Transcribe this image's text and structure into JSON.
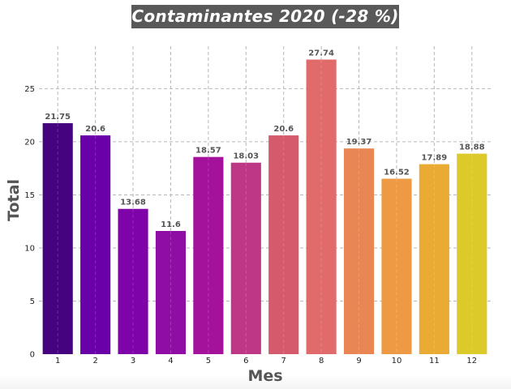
{
  "chart_data": {
    "type": "bar",
    "title": "Contaminantes 2020 (-28 %)",
    "xlabel": "Mes",
    "ylabel": "Total",
    "categories": [
      "1",
      "2",
      "3",
      "4",
      "5",
      "6",
      "7",
      "8",
      "9",
      "10",
      "11",
      "12"
    ],
    "values": [
      21.75,
      20.6,
      13.68,
      11.6,
      18.57,
      18.03,
      20.6,
      27.74,
      19.37,
      16.52,
      17.89,
      18.88
    ],
    "value_labels": [
      "21.75",
      "20.6",
      "13.68",
      "11.6",
      "18.57",
      "18.03",
      "20.6",
      "27.74",
      "19.37",
      "16.52",
      "17.89",
      "18.88"
    ],
    "ylim": [
      0,
      29
    ],
    "yticks": [
      0,
      5,
      10,
      15,
      20,
      25
    ],
    "grid": true,
    "legend": "none",
    "colors": [
      "#46037f",
      "#6a00a8",
      "#7e03a8",
      "#8f0da4",
      "#a4119a",
      "#bd3786",
      "#d45a6c",
      "#e16b6b",
      "#ea8554",
      "#ee9a45",
      "#e9ab34",
      "#dcc92a"
    ]
  }
}
